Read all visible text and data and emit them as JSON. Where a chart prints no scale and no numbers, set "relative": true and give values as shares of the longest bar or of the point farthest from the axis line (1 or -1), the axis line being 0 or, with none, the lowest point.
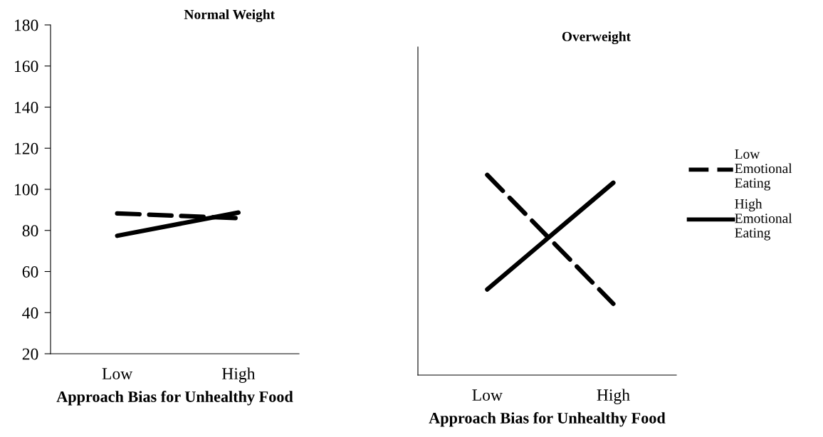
{
  "chart_data": [
    {
      "type": "line",
      "title": "Normal Weight",
      "xlabel": "Approach Bias for Unhealthy Food",
      "categories": [
        "Low",
        "High"
      ],
      "ylim": [
        20,
        180
      ],
      "yticks": [
        20,
        40,
        60,
        80,
        100,
        120,
        140,
        160,
        180
      ],
      "series": [
        {
          "color": "#000000",
          "line_style": "dashed",
          "values": [
            88.3,
            86.0
          ]
        },
        {
          "color": "#000000",
          "line_style": "solid",
          "values": [
            77.4,
            88.7
          ]
        }
      ]
    },
    {
      "type": "line",
      "title": "Overweight",
      "xlabel": "Approach Bias for Unhealthy Food",
      "categories": [
        "Low",
        "High"
      ],
      "relative": true,
      "legend": "right",
      "series": [
        {
          "name": "Low Emotional Eating",
          "color": "#000000",
          "line_style": "dashed",
          "values": [
            1.0,
            0.356
          ]
        },
        {
          "name": "High Emotional Eating",
          "color": "#000000",
          "line_style": "solid",
          "values": [
            0.428,
            0.961
          ]
        }
      ]
    }
  ]
}
